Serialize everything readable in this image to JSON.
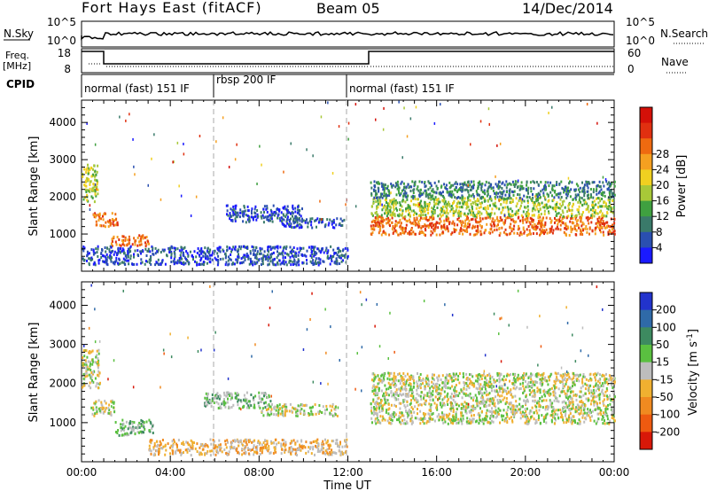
{
  "header": {
    "station": "Fort Hays East (fitACF)",
    "beam": "Beam 05",
    "date": "14/Dec/2014"
  },
  "strips": {
    "nsky_label": "N.Sky",
    "nsky_ticks": [
      "10^5",
      "10^0"
    ],
    "nsearch_label": "N.Search",
    "nsearch_ticks": [
      "10^5",
      "10^0"
    ],
    "freq_label": "Freq.",
    "freq_unit": "[MHz]",
    "freq_ticks": [
      "18",
      "8"
    ],
    "nave_label": "Nave",
    "nave_ticks": [
      "60",
      "0"
    ],
    "cpid_label": "CPID",
    "cpid_segments": [
      {
        "name": "normal (fast) 151 IF",
        "start": 0,
        "end": 6
      },
      {
        "name": "rbsp 200 IF",
        "start": 6,
        "end": 12
      },
      {
        "name": "normal (fast) 151 IF",
        "start": 12,
        "end": 24
      }
    ]
  },
  "colorbars": {
    "power": {
      "label": "Power [dB]",
      "ticks": [
        "4",
        "8",
        "12",
        "16",
        "20",
        "24",
        "28"
      ],
      "colors": [
        "#1a1aff",
        "#2a4fb0",
        "#3a7a6a",
        "#3fa040",
        "#a8c838",
        "#f0d020",
        "#f5a020",
        "#ee6a10",
        "#e03010",
        "#d41008"
      ]
    },
    "velocity": {
      "label_text": "Velocity [m s",
      "label_exp": "-1",
      "label_close": "]",
      "ticks": [
        "200",
        "100",
        "50",
        "15",
        "-15",
        "-50",
        "-100",
        "-200"
      ],
      "colors": [
        "#2233cc",
        "#2f6aa8",
        "#3d8a60",
        "#5ac040",
        "#bdbdbd",
        "#f0b030",
        "#f08a20",
        "#ee5a10",
        "#d81808"
      ]
    }
  },
  "chart_data": [
    {
      "type": "heatmap",
      "name": "power",
      "ylabel": "Slant Range [km]",
      "y_ticks": [
        "1000",
        "2000",
        "3000",
        "4000"
      ],
      "ylim": [
        0,
        4600
      ],
      "xlim": [
        0,
        24
      ],
      "blobs": [
        {
          "x": [
            0.0,
            0.7
          ],
          "y": [
            1900,
            2900
          ],
          "level": 4
        },
        {
          "x": [
            0.5,
            1.6
          ],
          "y": [
            1200,
            1600
          ],
          "level": 7
        },
        {
          "x": [
            1.3,
            3.0
          ],
          "y": [
            700,
            1000
          ],
          "level": 7
        },
        {
          "x": [
            6.5,
            10.0
          ],
          "y": [
            1350,
            1800
          ],
          "level": 1
        },
        {
          "x": [
            9.0,
            11.8
          ],
          "y": [
            1200,
            1450
          ],
          "level": 1
        },
        {
          "x": [
            0.0,
            12.0
          ],
          "y": [
            200,
            700
          ],
          "level": 1
        },
        {
          "x": [
            13.0,
            24.0
          ],
          "y": [
            1000,
            1500
          ],
          "level": 7
        },
        {
          "x": [
            13.0,
            24.0
          ],
          "y": [
            1500,
            2000
          ],
          "level": 4
        },
        {
          "x": [
            13.0,
            24.0
          ],
          "y": [
            2000,
            2450
          ],
          "level": 2
        }
      ]
    },
    {
      "type": "heatmap",
      "name": "velocity",
      "ylabel": "Slant Range [km]",
      "y_ticks": [
        "1000",
        "2000",
        "3000",
        "4000"
      ],
      "x_ticks": [
        "00:00",
        "04:00",
        "08:00",
        "12:00",
        "16:00",
        "20:00",
        "00:00"
      ],
      "xlabel": "Time UT",
      "ylim": [
        0,
        4600
      ],
      "xlim": [
        0,
        24
      ],
      "blobs": [
        {
          "x": [
            0.0,
            0.8
          ],
          "y": [
            1900,
            2900
          ],
          "level": 4
        },
        {
          "x": [
            0.4,
            1.5
          ],
          "y": [
            1200,
            1600
          ],
          "level": 4
        },
        {
          "x": [
            1.5,
            3.2
          ],
          "y": [
            700,
            1100
          ],
          "level": 3
        },
        {
          "x": [
            5.5,
            8.5
          ],
          "y": [
            1400,
            1800
          ],
          "level": 3
        },
        {
          "x": [
            8.0,
            11.5
          ],
          "y": [
            1200,
            1500
          ],
          "level": 4
        },
        {
          "x": [
            3.0,
            12.0
          ],
          "y": [
            200,
            600
          ],
          "level": 5
        },
        {
          "x": [
            13.0,
            24.0
          ],
          "y": [
            1000,
            2300
          ],
          "level": 4
        }
      ]
    }
  ]
}
